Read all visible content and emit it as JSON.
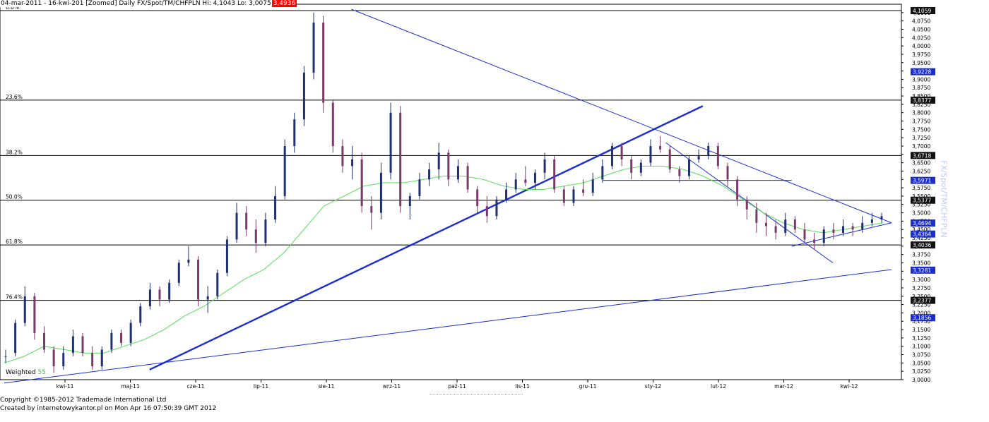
{
  "header": {
    "text": "04-mar-2011 - 16-kwi-201 [Zoomed] Daily FX/Spot/TM/CHFPLN Hi: 4,1043 Lo: 3,0075",
    "last_value": "3,4936"
  },
  "side_label": "FX/Spot/TM/CHFPLN",
  "footer": {
    "line1": "Copyright ©1985-2012 Trademade International Ltd",
    "line2": "Created by internetowykantor.pl    on Mon Apr 16 07:50:39 GMT 2012"
  },
  "colors": {
    "up_candle": "#203070",
    "down_candle": "#7a3a6a",
    "ma_line": "#55dd55",
    "trendline": "#1a2ed0",
    "fib_line": "#000000",
    "axis_box": "#1a2ed0"
  },
  "chart_data": {
    "type": "candlestick",
    "title": "Daily FX/Spot/TM/CHFPLN",
    "ylim": [
      3.0,
      4.125
    ],
    "y_ticks": [
      "3,0000",
      "3,0250",
      "3,0500",
      "3,0750",
      "3,1000",
      "3,1250",
      "3,1500",
      "3,1750",
      "3,2000",
      "3,2250",
      "3,2500",
      "3,2750",
      "3,3000",
      "3,3250",
      "3,3500",
      "3,3750",
      "3,4000",
      "3,4250",
      "3,4500",
      "3,4750",
      "3,5000",
      "3,5250",
      "3,5500",
      "3,5750",
      "3,6000",
      "3,6250",
      "3,6500",
      "3,6750",
      "3,7000",
      "3,7250",
      "3,7500",
      "3,7750",
      "3,8000",
      "3,8250",
      "3,8500",
      "3,8750",
      "3,9000",
      "3,9250",
      "3,9500",
      "3,9750",
      "4,0000",
      "4,0250",
      "4,0500",
      "4,0750",
      "4,1000"
    ],
    "x_ticks": [
      "kwi-11",
      "maj-11",
      "cze-11",
      "lip-11",
      "sie-11",
      "wrz-11",
      "paź-11",
      "lis-11",
      "gru-11",
      "sty-12",
      "lut-12",
      "mar-12",
      "kwi-12"
    ],
    "fib_levels": [
      {
        "label": "0.0%",
        "value": 4.1059
      },
      {
        "label": "23.6%",
        "value": 3.8377
      },
      {
        "label": "38.2%",
        "value": 3.6718
      },
      {
        "label": "50.0%",
        "value": 3.5377
      },
      {
        "label": "61.8%",
        "value": 3.4036
      },
      {
        "label": "76.4%",
        "value": 3.2377
      }
    ],
    "axis_markers": [
      {
        "value": 4.1059,
        "text": "4,1059",
        "style": "dark"
      },
      {
        "value": 3.9228,
        "text": "3,9228",
        "style": "blue"
      },
      {
        "value": 3.8377,
        "text": "3,8377",
        "style": "dark"
      },
      {
        "value": 3.6718,
        "text": "3,6718",
        "style": "dark"
      },
      {
        "value": 3.5971,
        "text": "3,5971",
        "style": "blue"
      },
      {
        "value": 3.5377,
        "text": "3,5377",
        "style": "dark"
      },
      {
        "value": 3.4694,
        "text": "3,4694",
        "style": "blue"
      },
      {
        "value": 3.4364,
        "text": "3,4364",
        "style": "blue"
      },
      {
        "value": 3.4036,
        "text": "3,4036",
        "style": "dark"
      },
      {
        "value": 3.3281,
        "text": "3,3281",
        "style": "blue"
      },
      {
        "value": 3.2377,
        "text": "3,2377",
        "style": "dark"
      },
      {
        "value": 3.1856,
        "text": "3,1856",
        "style": "blue"
      }
    ],
    "weighted_ma": {
      "label_prefix": "Weighted",
      "period": "55"
    },
    "series": [
      {
        "name": "CHFPLN",
        "values": [
          [
            3.07,
            3.09,
            3.05,
            3.07
          ],
          [
            3.08,
            3.18,
            3.07,
            3.17
          ],
          [
            3.17,
            3.28,
            3.16,
            3.25
          ],
          [
            3.25,
            3.26,
            3.12,
            3.14
          ],
          [
            3.14,
            3.16,
            3.08,
            3.09
          ],
          [
            3.09,
            3.1,
            3.02,
            3.04
          ],
          [
            3.04,
            3.1,
            3.03,
            3.08
          ],
          [
            3.08,
            3.15,
            3.07,
            3.13
          ],
          [
            3.13,
            3.14,
            3.07,
            3.08
          ],
          [
            3.08,
            3.1,
            3.03,
            3.04
          ],
          [
            3.04,
            3.1,
            3.03,
            3.09
          ],
          [
            3.09,
            3.15,
            3.08,
            3.14
          ],
          [
            3.14,
            3.15,
            3.1,
            3.11
          ],
          [
            3.11,
            3.18,
            3.1,
            3.17
          ],
          [
            3.17,
            3.23,
            3.16,
            3.22
          ],
          [
            3.22,
            3.29,
            3.21,
            3.27
          ],
          [
            3.27,
            3.28,
            3.22,
            3.24
          ],
          [
            3.24,
            3.3,
            3.23,
            3.29
          ],
          [
            3.29,
            3.36,
            3.28,
            3.35
          ],
          [
            3.35,
            3.4,
            3.34,
            3.36
          ],
          [
            3.36,
            3.37,
            3.22,
            3.24
          ],
          [
            3.24,
            3.28,
            3.2,
            3.25
          ],
          [
            3.25,
            3.33,
            3.24,
            3.32
          ],
          [
            3.32,
            3.43,
            3.31,
            3.42
          ],
          [
            3.42,
            3.53,
            3.41,
            3.5
          ],
          [
            3.5,
            3.52,
            3.43,
            3.45
          ],
          [
            3.45,
            3.48,
            3.38,
            3.41
          ],
          [
            3.41,
            3.5,
            3.4,
            3.48
          ],
          [
            3.48,
            3.58,
            3.47,
            3.55
          ],
          [
            3.55,
            3.72,
            3.54,
            3.7
          ],
          [
            3.7,
            3.8,
            3.68,
            3.78
          ],
          [
            3.78,
            3.94,
            3.76,
            3.92
          ],
          [
            3.92,
            4.1,
            3.9,
            4.07
          ],
          [
            4.07,
            4.09,
            3.8,
            3.83
          ],
          [
            3.83,
            3.84,
            3.68,
            3.7
          ],
          [
            3.7,
            3.72,
            3.62,
            3.64
          ],
          [
            3.64,
            3.7,
            3.6,
            3.66
          ],
          [
            3.66,
            3.68,
            3.5,
            3.52
          ],
          [
            3.52,
            3.55,
            3.45,
            3.5
          ],
          [
            3.5,
            3.65,
            3.48,
            3.62
          ],
          [
            3.62,
            3.83,
            3.6,
            3.8
          ],
          [
            3.8,
            3.82,
            3.5,
            3.52
          ],
          [
            3.52,
            3.56,
            3.48,
            3.55
          ],
          [
            3.55,
            3.62,
            3.54,
            3.6
          ],
          [
            3.6,
            3.65,
            3.58,
            3.63
          ],
          [
            3.63,
            3.71,
            3.6,
            3.68
          ],
          [
            3.68,
            3.69,
            3.58,
            3.6
          ],
          [
            3.6,
            3.66,
            3.59,
            3.64
          ],
          [
            3.64,
            3.65,
            3.56,
            3.57
          ],
          [
            3.57,
            3.58,
            3.5,
            3.52
          ],
          [
            3.52,
            3.55,
            3.47,
            3.49
          ],
          [
            3.49,
            3.55,
            3.48,
            3.54
          ],
          [
            3.54,
            3.59,
            3.53,
            3.57
          ],
          [
            3.57,
            3.62,
            3.56,
            3.6
          ],
          [
            3.6,
            3.64,
            3.58,
            3.59
          ],
          [
            3.59,
            3.63,
            3.57,
            3.62
          ],
          [
            3.62,
            3.68,
            3.6,
            3.66
          ],
          [
            3.66,
            3.67,
            3.56,
            3.57
          ],
          [
            3.57,
            3.58,
            3.52,
            3.53
          ],
          [
            3.53,
            3.58,
            3.52,
            3.57
          ],
          [
            3.57,
            3.6,
            3.55,
            3.56
          ],
          [
            3.56,
            3.62,
            3.55,
            3.6
          ],
          [
            3.6,
            3.66,
            3.59,
            3.64
          ],
          [
            3.64,
            3.71,
            3.63,
            3.7
          ],
          [
            3.7,
            3.71,
            3.64,
            3.66
          ],
          [
            3.66,
            3.67,
            3.6,
            3.62
          ],
          [
            3.62,
            3.66,
            3.61,
            3.65
          ],
          [
            3.65,
            3.72,
            3.64,
            3.7
          ],
          [
            3.7,
            3.73,
            3.68,
            3.69
          ],
          [
            3.69,
            3.7,
            3.62,
            3.63
          ],
          [
            3.63,
            3.64,
            3.59,
            3.61
          ],
          [
            3.61,
            3.67,
            3.6,
            3.66
          ],
          [
            3.66,
            3.69,
            3.65,
            3.67
          ],
          [
            3.67,
            3.71,
            3.66,
            3.7
          ],
          [
            3.7,
            3.71,
            3.63,
            3.64
          ],
          [
            3.64,
            3.65,
            3.58,
            3.6
          ],
          [
            3.6,
            3.61,
            3.52,
            3.54
          ],
          [
            3.54,
            3.55,
            3.48,
            3.51
          ],
          [
            3.51,
            3.53,
            3.44,
            3.47
          ],
          [
            3.47,
            3.5,
            3.43,
            3.46
          ],
          [
            3.46,
            3.48,
            3.42,
            3.44
          ],
          [
            3.44,
            3.5,
            3.43,
            3.48
          ],
          [
            3.48,
            3.49,
            3.44,
            3.45
          ],
          [
            3.45,
            3.47,
            3.41,
            3.42
          ],
          [
            3.42,
            3.44,
            3.39,
            3.41
          ],
          [
            3.41,
            3.46,
            3.4,
            3.45
          ],
          [
            3.45,
            3.47,
            3.42,
            3.44
          ],
          [
            3.44,
            3.48,
            3.43,
            3.46
          ],
          [
            3.46,
            3.47,
            3.43,
            3.45
          ],
          [
            3.45,
            3.49,
            3.44,
            3.47
          ],
          [
            3.47,
            3.5,
            3.46,
            3.48
          ],
          [
            3.48,
            3.5,
            3.47,
            3.49
          ]
        ]
      },
      {
        "name": "Weighted 55",
        "values": [
          3.05,
          3.07,
          3.1,
          3.09,
          3.08,
          3.08,
          3.1,
          3.12,
          3.15,
          3.19,
          3.22,
          3.26,
          3.3,
          3.33,
          3.38,
          3.45,
          3.52,
          3.55,
          3.58,
          3.59,
          3.59,
          3.6,
          3.61,
          3.61,
          3.6,
          3.58,
          3.57,
          3.57,
          3.58,
          3.59,
          3.61,
          3.63,
          3.64,
          3.64,
          3.63,
          3.61,
          3.58,
          3.54,
          3.5,
          3.47,
          3.45,
          3.44,
          3.45,
          3.46,
          3.47
        ]
      }
    ],
    "trendlines": [
      {
        "style": "bold",
        "from": [
          "2011-05-10",
          3.03
        ],
        "to": [
          "2012-01-20",
          3.82
        ]
      },
      {
        "style": "thin",
        "from": [
          "2011-03-04",
          2.99
        ],
        "to": [
          "2012-04-16",
          3.33
        ]
      },
      {
        "style": "thin",
        "from": [
          "2011-08-11",
          4.11
        ],
        "to": [
          "2012-04-16",
          3.47
        ]
      },
      {
        "style": "thin",
        "from": [
          "2012-01-03",
          3.71
        ],
        "to": [
          "2012-03-20",
          3.35
        ]
      },
      {
        "style": "thin",
        "from": [
          "2012-03-01",
          3.4
        ],
        "to": [
          "2012-04-16",
          3.47
        ]
      },
      {
        "style": "thin",
        "from": [
          "2011-12-05",
          3.597
        ],
        "to": [
          "2012-03-01",
          3.597
        ]
      }
    ]
  }
}
